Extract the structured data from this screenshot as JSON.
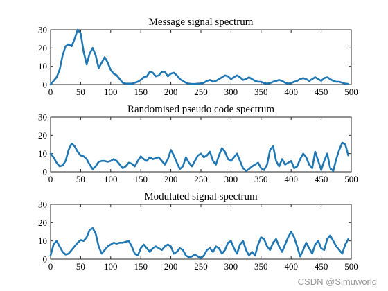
{
  "watermark": "CSDN @Simuworld",
  "line_color": "#1f77b4",
  "chart_data": [
    {
      "type": "line",
      "title": "Message signal spectrum",
      "xlim": [
        0,
        500
      ],
      "ylim": [
        0,
        30
      ],
      "xticks": [
        0,
        50,
        100,
        150,
        200,
        250,
        300,
        350,
        400,
        450,
        500
      ],
      "yticks": [
        0,
        10,
        20,
        30
      ],
      "grid": false,
      "series": [
        {
          "x": [
            0,
            5,
            10,
            15,
            20,
            25,
            30,
            35,
            40,
            45,
            50,
            55,
            60,
            65,
            70,
            75,
            80,
            85,
            90,
            95,
            100,
            105,
            110,
            115,
            120,
            125,
            130,
            135,
            140,
            145,
            150,
            155,
            160,
            165,
            170,
            175,
            180,
            185,
            190,
            195,
            200,
            205,
            210,
            215,
            220,
            225,
            230,
            235,
            240,
            245,
            250,
            255,
            260,
            265,
            270,
            275,
            280,
            285,
            290,
            295,
            300,
            305,
            310,
            315,
            320,
            325,
            330,
            335,
            340,
            345,
            350,
            355,
            360,
            365,
            370,
            375,
            380,
            385,
            390,
            395,
            400,
            405,
            410,
            415,
            420,
            425,
            430,
            435,
            440,
            445,
            450,
            455,
            460,
            465,
            470,
            475,
            480,
            485,
            490,
            495
          ],
          "y": [
            0,
            2,
            4,
            8,
            16,
            21,
            22,
            21,
            25,
            30,
            28,
            18,
            11,
            17,
            20,
            16,
            9,
            12,
            15,
            12,
            8,
            6,
            5,
            3,
            1,
            0.5,
            0.5,
            0.5,
            1,
            1.5,
            2.5,
            4,
            4.5,
            7,
            6.5,
            4.5,
            5,
            7,
            7,
            4.5,
            6,
            6.5,
            5,
            3,
            2,
            1,
            0.5,
            0.3,
            0.3,
            0.5,
            0.5,
            1,
            2,
            2.5,
            1.5,
            2,
            3,
            4,
            5,
            4.5,
            3,
            4,
            5,
            4,
            2.5,
            3,
            4,
            3,
            2,
            1.5,
            1.5,
            0.8,
            0.5,
            0.8,
            1.5,
            2,
            2.5,
            2,
            1,
            0.5,
            0.8,
            1.5,
            2,
            3,
            3.5,
            3,
            2,
            3,
            4,
            3,
            2,
            3.5,
            4,
            3,
            2,
            1.5,
            1.5,
            1,
            0.5,
            0.3
          ]
        }
      ]
    },
    {
      "type": "line",
      "title": "Randomised pseudo code spectrum",
      "xlim": [
        0,
        500
      ],
      "ylim": [
        0,
        30
      ],
      "xticks": [
        0,
        50,
        100,
        150,
        200,
        250,
        300,
        350,
        400,
        450,
        500
      ],
      "yticks": [
        0,
        10,
        20,
        30
      ],
      "grid": false,
      "series": [
        {
          "x": [
            0,
            5,
            10,
            15,
            20,
            25,
            30,
            35,
            40,
            45,
            50,
            55,
            60,
            65,
            70,
            75,
            80,
            85,
            90,
            95,
            100,
            105,
            110,
            115,
            120,
            125,
            130,
            135,
            140,
            145,
            150,
            155,
            160,
            165,
            170,
            175,
            180,
            185,
            190,
            195,
            200,
            205,
            210,
            215,
            220,
            225,
            230,
            235,
            240,
            245,
            250,
            255,
            260,
            265,
            270,
            275,
            280,
            285,
            290,
            295,
            300,
            305,
            310,
            315,
            320,
            325,
            330,
            335,
            340,
            345,
            350,
            355,
            360,
            365,
            370,
            375,
            380,
            385,
            390,
            395,
            400,
            405,
            410,
            415,
            420,
            425,
            430,
            435,
            440,
            445,
            450,
            455,
            460,
            465,
            470,
            475,
            480,
            485,
            490,
            495
          ],
          "y": [
            10,
            8,
            5,
            3,
            3.5,
            6,
            12,
            15.5,
            14,
            11,
            9,
            8.5,
            7,
            4,
            1.5,
            3,
            5.5,
            6,
            6,
            5.5,
            6,
            7,
            6,
            4,
            2,
            3,
            5,
            4.5,
            3,
            6,
            8.5,
            7,
            6,
            8,
            7,
            7.5,
            8,
            6,
            4,
            7,
            12,
            9,
            5,
            1.5,
            3,
            8,
            5,
            3,
            6,
            9,
            10,
            8,
            9,
            11,
            6,
            4,
            9,
            13,
            11,
            7,
            6,
            8,
            10,
            6,
            2,
            0.5,
            1.5,
            3,
            4,
            5,
            2,
            1,
            4,
            12,
            14,
            6,
            3,
            7,
            4,
            5,
            6,
            2,
            3,
            7,
            10,
            8,
            4,
            2,
            11,
            6,
            1,
            6,
            10,
            2,
            0.5,
            7,
            12,
            16,
            15,
            9
          ]
        }
      ]
    },
    {
      "type": "line",
      "title": "Modulated signal spectrum",
      "xlim": [
        0,
        500
      ],
      "ylim": [
        0,
        30
      ],
      "xticks": [
        0,
        50,
        100,
        150,
        200,
        250,
        300,
        350,
        400,
        450,
        500
      ],
      "yticks": [
        0,
        10,
        20,
        30
      ],
      "grid": false,
      "series": [
        {
          "x": [
            0,
            5,
            10,
            15,
            20,
            25,
            30,
            35,
            40,
            45,
            50,
            55,
            60,
            65,
            70,
            75,
            80,
            85,
            90,
            95,
            100,
            105,
            110,
            115,
            120,
            125,
            130,
            135,
            140,
            145,
            150,
            155,
            160,
            165,
            170,
            175,
            180,
            185,
            190,
            195,
            200,
            205,
            210,
            215,
            220,
            225,
            230,
            235,
            240,
            245,
            250,
            255,
            260,
            265,
            270,
            275,
            280,
            285,
            290,
            295,
            300,
            305,
            310,
            315,
            320,
            325,
            330,
            335,
            340,
            345,
            350,
            355,
            360,
            365,
            370,
            375,
            380,
            385,
            390,
            395,
            400,
            405,
            410,
            415,
            420,
            425,
            430,
            435,
            440,
            445,
            450,
            455,
            460,
            465,
            470,
            475,
            480,
            485,
            490,
            495
          ],
          "y": [
            2,
            8,
            10,
            7,
            4,
            2.5,
            3,
            5,
            7,
            9,
            10.5,
            10,
            12,
            16,
            17,
            14,
            7,
            3,
            5,
            7,
            8,
            9,
            8.5,
            9,
            9,
            9.5,
            10,
            7,
            3,
            2,
            6,
            8,
            6,
            4,
            6,
            7,
            6,
            5,
            7,
            8,
            7,
            3,
            4,
            6,
            5,
            2,
            1,
            1.5,
            2.5,
            1.5,
            0.5,
            2,
            5,
            6,
            4,
            7,
            6,
            3,
            5,
            9,
            10,
            6,
            3,
            8,
            10,
            5,
            2,
            4,
            2,
            8,
            12,
            11,
            7,
            5,
            9,
            11,
            7,
            4,
            8,
            12,
            15,
            12,
            7,
            1.5,
            5,
            9,
            6,
            3,
            8,
            10,
            6,
            5,
            11,
            13,
            10,
            7,
            5,
            3,
            8,
            11
          ]
        }
      ]
    }
  ]
}
